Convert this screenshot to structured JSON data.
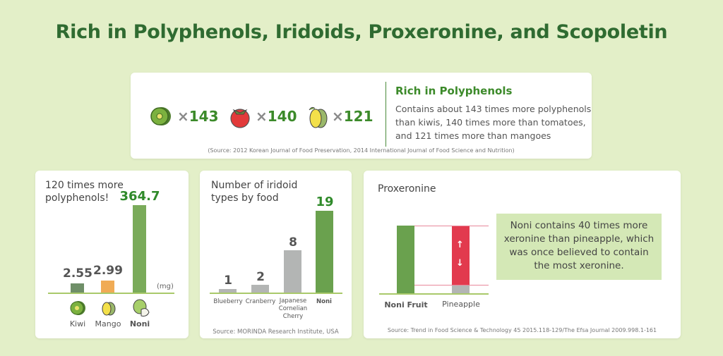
{
  "title": "Rich in Polyphenols, Iridoids, Proxeronine, and Scopoletin",
  "top": {
    "items": [
      {
        "icon": "kiwi-icon",
        "mult": "×",
        "value": "143"
      },
      {
        "icon": "tomato-icon",
        "mult": "×",
        "value": "140"
      },
      {
        "icon": "mango-icon",
        "mult": "×",
        "value": "121"
      }
    ],
    "heading": "Rich in Polyphenols",
    "body": [
      "Contains about 143 times more polyphenols",
      "than kiwis, 140 times more than tomatoes,",
      "and 121 times more than mangoes"
    ],
    "source": "(Source: 2012 Korean Journal of Food Preservation, 2014 International Journal of Food Science and Nutrition)"
  },
  "colors": {
    "green": "#3c8a2a",
    "bar_green": "#7aab5a",
    "kiwi": "#6f8f68",
    "mango": "#f0ab55",
    "gray": "#b3b5b4",
    "red": "#e23a4e",
    "box": "#d4e8b6"
  },
  "chart_data": [
    {
      "type": "bar",
      "title": "120 times more polyphenols!",
      "unit": "(mg)",
      "categories": [
        "Kiwi",
        "Mango",
        "Noni"
      ],
      "values": [
        2.55,
        2.99,
        364.7
      ],
      "labels": [
        "2.55",
        "2.99",
        "364.7"
      ],
      "note": "bars not drawn to scale"
    },
    {
      "type": "bar",
      "title": "Number of iridoid types by food",
      "categories": [
        "Blueberry",
        "Cranberry",
        "Japanese Cornelian Cherry",
        "Noni"
      ],
      "category_lines": [
        [
          "Blueberry"
        ],
        [
          "Cranberry"
        ],
        [
          "Japanese",
          "Cornelian",
          "Cherry"
        ],
        [
          "Noni"
        ]
      ],
      "values": [
        1,
        2,
        8,
        19
      ],
      "labels": [
        "1",
        "2",
        "8",
        "19"
      ],
      "source": "Source: MORINDA Research Institute, USA"
    },
    {
      "type": "bar",
      "title": "Proxeronine",
      "categories": [
        "Noni Fruit",
        "Pineapple"
      ],
      "values": [
        40,
        1
      ],
      "callout": [
        "Noni contains 40 times more",
        "xeronine than pineapple, which",
        "was once believed to contain",
        "the most xeronine."
      ],
      "source": "Source: Trend in Food Science & Technology 45 2015.118-129/The Efsa Journal 2009.998.1-161"
    }
  ]
}
